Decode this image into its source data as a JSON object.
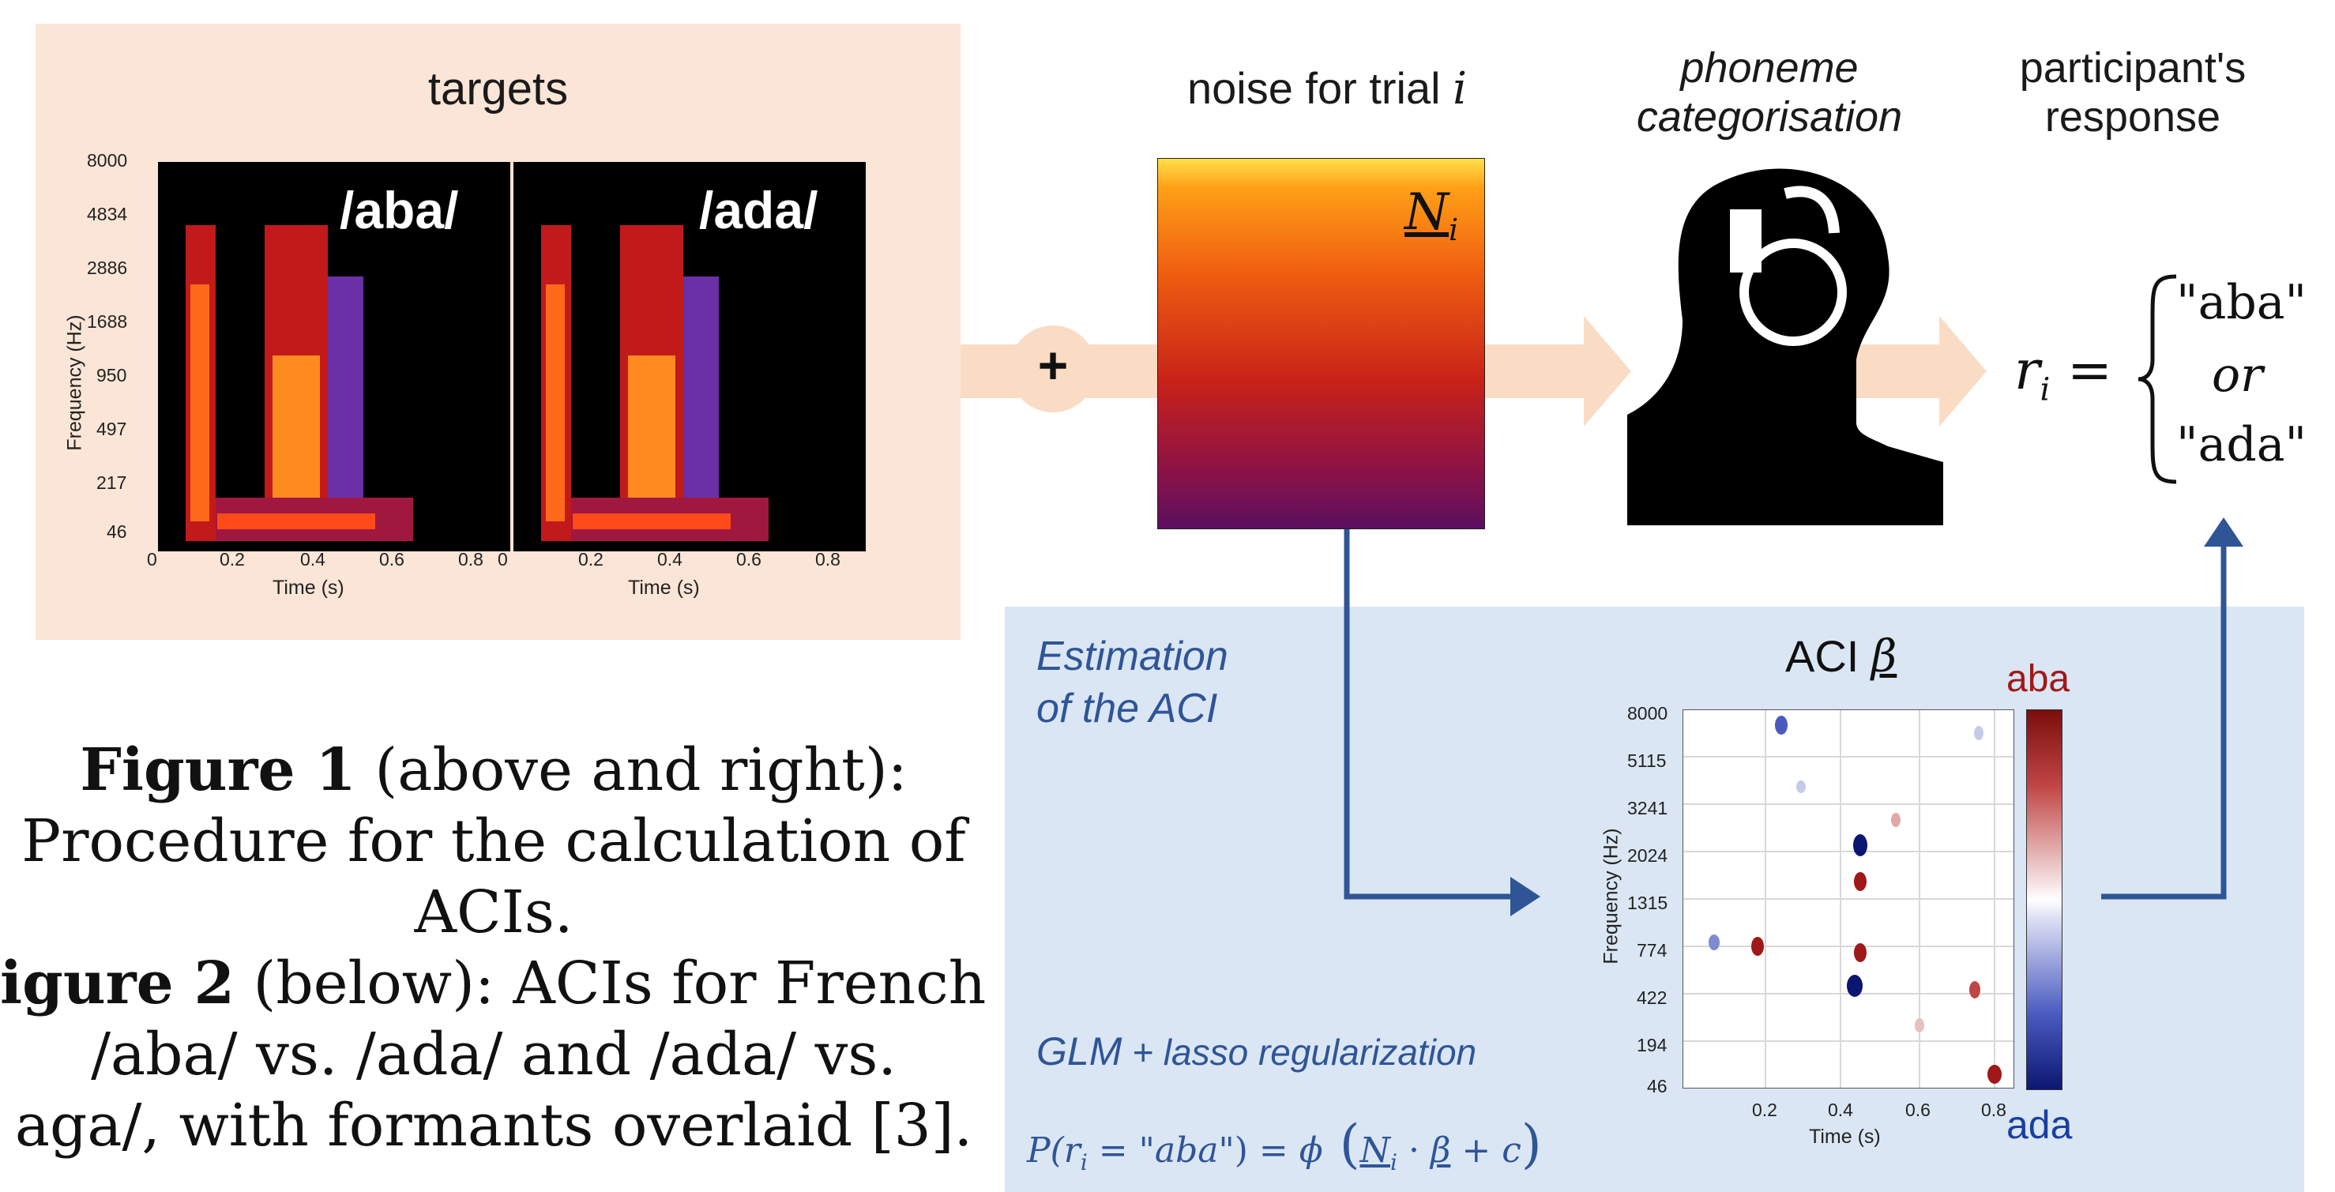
{
  "targets": {
    "title": "targets",
    "panels": [
      {
        "label": "/aba/"
      },
      {
        "label": "/ada/"
      }
    ],
    "y_ticks": [
      "8000",
      "4834",
      "2886",
      "1688",
      "950",
      "497",
      "217",
      "46"
    ],
    "x_ticks_left": [
      "0",
      "0.2",
      "0.4",
      "0.6",
      "0.8"
    ],
    "x_ticks_right": [
      "0",
      "0.2",
      "0.4",
      "0.6",
      "0.8"
    ],
    "ylabel": "Frequency (Hz)",
    "xlabel": "Time (s)"
  },
  "plus_symbol": "+",
  "noise": {
    "title": "noise for trial",
    "title_var": "i",
    "matrix_symbol": "N",
    "matrix_subscript": "i"
  },
  "categorisation": {
    "title_line1": "phoneme",
    "title_line2": "categorisation"
  },
  "response": {
    "title_line1": "participant's",
    "title_line2": "response",
    "lhs_symbol": "r",
    "lhs_subscript": "i",
    "equals": "=",
    "case_1": "\"aba\"",
    "case_2": "or",
    "case_3": "\"ada\""
  },
  "estimation": {
    "title_line1": "Estimation",
    "title_line2": "of the ACI",
    "glm_label": "GLM",
    "glm_rest": " + lasso regularization",
    "formula": {
      "p": "P(",
      "r": "r",
      "r_sub": "i",
      "eq": " = \"",
      "aba": "aba",
      "close": "\") = ",
      "phi": "ϕ",
      "n": "N",
      "n_sub": "i",
      "dot": " · ",
      "beta": "β",
      "plus_c": " + c"
    }
  },
  "aci": {
    "title": "ACI",
    "title_symbol": "β",
    "y_ticks": [
      "8000",
      "5115",
      "3241",
      "2024",
      "1315",
      "774",
      "422",
      "194",
      "46"
    ],
    "x_ticks": [
      "0.2",
      "0.4",
      "0.6",
      "0.8"
    ],
    "ylabel": "Frequency (Hz)",
    "xlabel": "Time (s)",
    "colorbar_top": "aba",
    "colorbar_bottom": "ada",
    "color_top": "#a01818",
    "color_bottom": "#1a2f8a"
  },
  "caption": {
    "fig1_bold": "Figure 1",
    "fig1_text": " (above and right):",
    "fig1_line2": "Procedure for the calculation of",
    "fig1_line3": "ACIs.",
    "fig2_bold": "igure 2",
    "fig2_text": " (below): ACIs for French",
    "fig2_line2": "/aba/ vs. /ada/ and /ada/ vs.",
    "fig2_line3": "aga/, with formants overlaid [3]."
  },
  "colors": {
    "targets_bg": "#fbe5d6",
    "aci_bg": "#dae6f3",
    "arrow_peach": "#fadcc5",
    "arrow_blue": "#2f5597"
  }
}
